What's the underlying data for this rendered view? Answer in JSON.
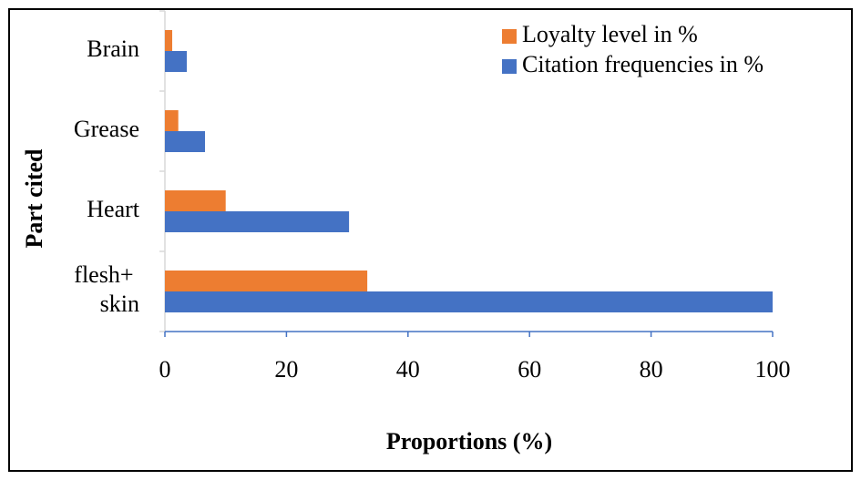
{
  "chart_data": {
    "type": "hbar",
    "categories": [
      "Brain",
      "Grease",
      "Heart",
      "flesh+ skin"
    ],
    "series": [
      {
        "name": "Loyalty level in %",
        "color": "#ed7d31",
        "values": [
          1.2,
          2.2,
          10,
          33.3
        ]
      },
      {
        "name": "Citation frequencies in %",
        "color": "#4472c4",
        "values": [
          3.6,
          6.6,
          30.3,
          100
        ]
      }
    ],
    "xlim": [
      0,
      100
    ],
    "xticks": [
      0,
      20,
      40,
      60,
      80,
      100
    ],
    "xlabel": "Proportions (%)",
    "ylabel": "Part cited",
    "legend": "top-right",
    "grid": false
  }
}
